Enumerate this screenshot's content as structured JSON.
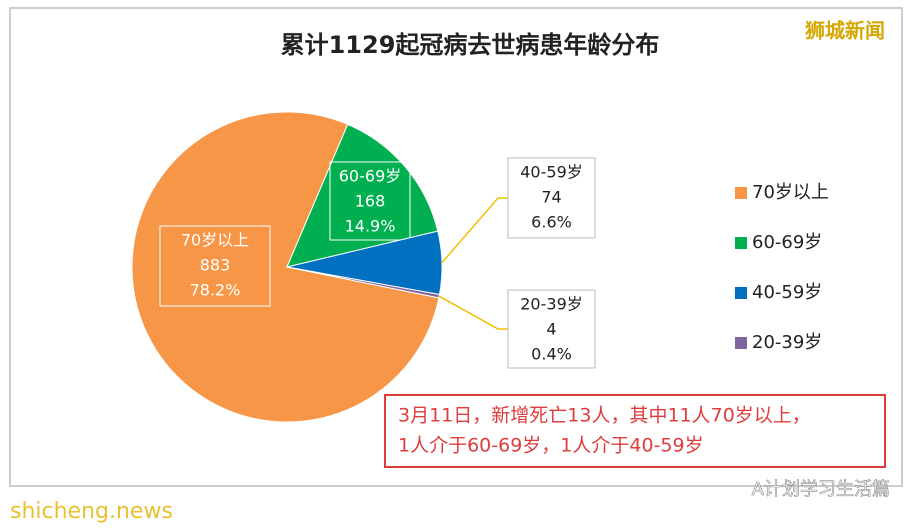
{
  "chart_data": {
    "type": "pie",
    "title": "累计1129起冠病去世病患年龄分布",
    "categories": [
      "70岁以上",
      "60-69岁",
      "40-59岁",
      "20-39岁"
    ],
    "values": [
      883,
      168,
      74,
      4
    ],
    "percents": [
      78.2,
      14.9,
      6.6,
      0.4
    ],
    "percent_labels": [
      "78.2%",
      "14.9%",
      "6.6%",
      "0.4%"
    ],
    "colors": [
      "#f79646",
      "#00b050",
      "#0070c0",
      "#8064a2"
    ],
    "legend": "right",
    "watermark": "狮城新闻",
    "annotation": [
      "3月11日，新增死亡13人，其中11人70岁以上，",
      "1人介于60-69岁，1人介于40-59岁"
    ],
    "footer_left": "shicheng.news",
    "footer_right": "A计划学习生活篇"
  }
}
